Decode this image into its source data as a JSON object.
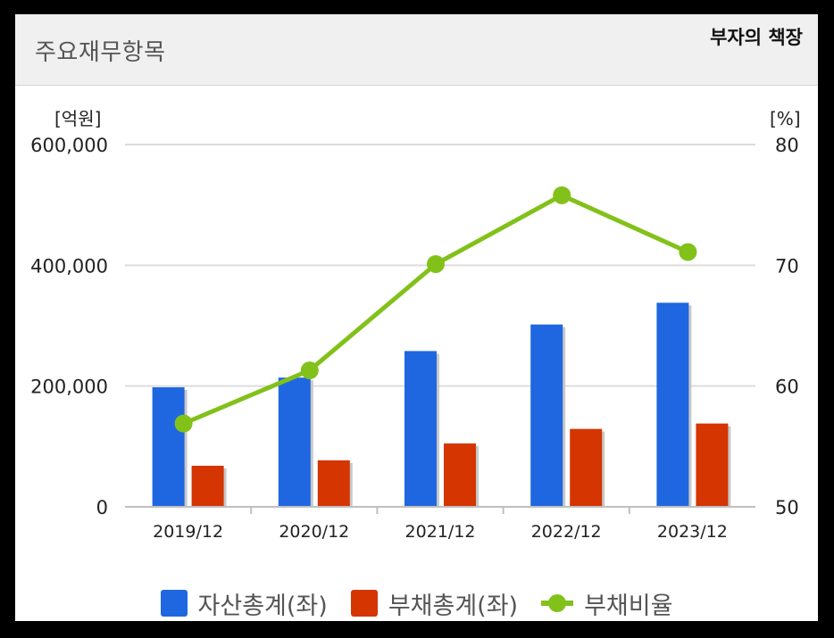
{
  "header": {
    "title": "주요재무항목",
    "badge": "부자의 책장"
  },
  "colors": {
    "assets": "#1f67e0",
    "liabilities": "#d53500",
    "ratio": "#82c11a"
  },
  "chart_data": {
    "type": "bar",
    "categories": [
      "2019/12",
      "2020/12",
      "2021/12",
      "2022/12",
      "2023/12"
    ],
    "series": [
      {
        "name": "자산총계(좌)",
        "type": "bar",
        "axis": "left",
        "values": [
          198000,
          214000,
          258000,
          302000,
          338000
        ]
      },
      {
        "name": "부채총계(좌)",
        "type": "bar",
        "axis": "left",
        "values": [
          68000,
          77000,
          105000,
          129000,
          138000
        ]
      },
      {
        "name": "부채비율",
        "type": "line",
        "axis": "right",
        "values": [
          56.9,
          61.3,
          70.1,
          75.8,
          71.1
        ]
      }
    ],
    "y_left": {
      "unit": "[억원]",
      "range": [
        0,
        600000
      ],
      "ticks": [
        0,
        200000,
        400000,
        600000
      ],
      "tick_labels": [
        "0",
        "200,000",
        "400,000",
        "600,000"
      ]
    },
    "y_right": {
      "unit": "[%]",
      "range": [
        50,
        80
      ],
      "ticks": [
        50,
        60,
        70,
        80
      ],
      "tick_labels": [
        "50",
        "60",
        "70",
        "80"
      ]
    },
    "grid": true,
    "legend_position": "bottom"
  },
  "legend": [
    {
      "label": "자산총계(좌)",
      "kind": "bar"
    },
    {
      "label": "부채총계(좌)",
      "kind": "bar"
    },
    {
      "label": "부채비율",
      "kind": "line"
    }
  ]
}
